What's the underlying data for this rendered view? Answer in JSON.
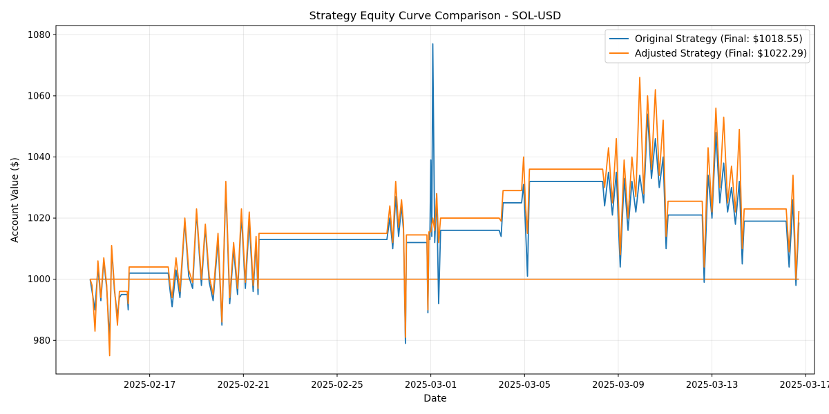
{
  "chart_data": {
    "type": "line",
    "title": "Strategy Equity Curve Comparison - SOL-USD",
    "xlabel": "Date",
    "ylabel": "Account Value ($)",
    "x_range": [
      "2025-02-13T00:00",
      "2025-03-17T09:00"
    ],
    "ylim": [
      969,
      1083
    ],
    "x_ticks": [
      "2025-02-17",
      "2025-02-21",
      "2025-02-25",
      "2025-03-01",
      "2025-03-05",
      "2025-03-09",
      "2025-03-13",
      "2025-03-17"
    ],
    "y_ticks": [
      980,
      1000,
      1020,
      1040,
      1060,
      1080
    ],
    "grid": true,
    "legend_position": "top-right",
    "series": [
      {
        "name": "Original Strategy (Final: $1018.55)",
        "color": "#1f77b4",
        "points": [
          [
            "2025-02-14T11:00",
            1000
          ],
          [
            "2025-02-14T13:00",
            996
          ],
          [
            "2025-02-14T16:00",
            990
          ],
          [
            "2025-02-14T19:00",
            1004
          ],
          [
            "2025-02-14T22:00",
            993
          ],
          [
            "2025-02-15T01:00",
            1006
          ],
          [
            "2025-02-15T04:00",
            997
          ],
          [
            "2025-02-15T07:00",
            980
          ],
          [
            "2025-02-15T09:00",
            1010
          ],
          [
            "2025-02-15T12:00",
            996
          ],
          [
            "2025-02-15T15:00",
            988
          ],
          [
            "2025-02-15T17:00",
            994
          ],
          [
            "2025-02-15T19:00",
            995
          ],
          [
            "2025-02-16T01:00",
            995
          ],
          [
            "2025-02-16T02:00",
            990
          ],
          [
            "2025-02-16T03:00",
            1002
          ],
          [
            "2025-02-17T19:00",
            1002
          ],
          [
            "2025-02-17T21:00",
            996
          ],
          [
            "2025-02-17T23:00",
            991
          ],
          [
            "2025-02-18T03:00",
            1003
          ],
          [
            "2025-02-18T07:00",
            994
          ],
          [
            "2025-02-18T12:00",
            1019
          ],
          [
            "2025-02-18T16:00",
            1001
          ],
          [
            "2025-02-18T20:00",
            997
          ],
          [
            "2025-02-19T00:00",
            1022
          ],
          [
            "2025-02-19T05:00",
            998
          ],
          [
            "2025-02-19T09:00",
            1017
          ],
          [
            "2025-02-19T13:00",
            999
          ],
          [
            "2025-02-19T17:00",
            993
          ],
          [
            "2025-02-19T22:00",
            1013
          ],
          [
            "2025-02-20T02:00",
            985
          ],
          [
            "2025-02-20T06:00",
            1030
          ],
          [
            "2025-02-20T10:00",
            992
          ],
          [
            "2025-02-20T14:00",
            1010
          ],
          [
            "2025-02-20T18:00",
            995
          ],
          [
            "2025-02-20T22:00",
            1021
          ],
          [
            "2025-02-21T02:00",
            997
          ],
          [
            "2025-02-21T06:00",
            1019
          ],
          [
            "2025-02-21T10:00",
            996
          ],
          [
            "2025-02-21T13:00",
            1012
          ],
          [
            "2025-02-21T15:00",
            995
          ],
          [
            "2025-02-21T16:00",
            1013
          ],
          [
            "2025-02-27T03:00",
            1013
          ],
          [
            "2025-02-27T06:00",
            1020
          ],
          [
            "2025-02-27T09:00",
            1010
          ],
          [
            "2025-02-27T12:00",
            1027
          ],
          [
            "2025-02-27T15:00",
            1014
          ],
          [
            "2025-02-27T18:00",
            1024
          ],
          [
            "2025-02-27T20:00",
            1016
          ],
          [
            "2025-02-27T22:00",
            979
          ],
          [
            "2025-02-27T23:00",
            1012
          ],
          [
            "2025-02-28T20:00",
            1012
          ],
          [
            "2025-02-28T21:00",
            989
          ],
          [
            "2025-02-28T22:00",
            1013
          ],
          [
            "2025-02-28T23:00",
            1013
          ],
          [
            "2025-03-01T00:00",
            1039
          ],
          [
            "2025-03-01T01:00",
            1014
          ],
          [
            "2025-03-01T02:00",
            1077
          ],
          [
            "2025-03-01T04:00",
            1012
          ],
          [
            "2025-03-01T06:00",
            1028
          ],
          [
            "2025-03-01T08:00",
            992
          ],
          [
            "2025-03-01T10:00",
            1016
          ],
          [
            "2025-03-03T22:00",
            1016
          ],
          [
            "2025-03-04T00:00",
            1014
          ],
          [
            "2025-03-04T02:00",
            1025
          ],
          [
            "2025-03-04T21:00",
            1025
          ],
          [
            "2025-03-04T23:00",
            1031
          ],
          [
            "2025-03-05T01:00",
            1017
          ],
          [
            "2025-03-05T03:00",
            1001
          ],
          [
            "2025-03-05T05:00",
            1032
          ],
          [
            "2025-03-08T08:00",
            1032
          ],
          [
            "2025-03-08T10:00",
            1024
          ],
          [
            "2025-03-08T14:00",
            1035
          ],
          [
            "2025-03-08T18:00",
            1021
          ],
          [
            "2025-03-08T22:00",
            1035
          ],
          [
            "2025-03-09T02:00",
            1004
          ],
          [
            "2025-03-09T06:00",
            1033
          ],
          [
            "2025-03-09T10:00",
            1016
          ],
          [
            "2025-03-09T14:00",
            1032
          ],
          [
            "2025-03-09T18:00",
            1022
          ],
          [
            "2025-03-09T22:00",
            1034
          ],
          [
            "2025-03-10T02:00",
            1025
          ],
          [
            "2025-03-10T06:00",
            1054
          ],
          [
            "2025-03-10T10:00",
            1033
          ],
          [
            "2025-03-10T14:00",
            1046
          ],
          [
            "2025-03-10T18:00",
            1030
          ],
          [
            "2025-03-10T22:00",
            1040
          ],
          [
            "2025-03-11T01:00",
            1010
          ],
          [
            "2025-03-11T03:00",
            1021
          ],
          [
            "2025-03-12T14:00",
            1021
          ],
          [
            "2025-03-12T16:00",
            999
          ],
          [
            "2025-03-12T20:00",
            1034
          ],
          [
            "2025-03-13T00:00",
            1020
          ],
          [
            "2025-03-13T04:00",
            1048
          ],
          [
            "2025-03-13T08:00",
            1025
          ],
          [
            "2025-03-13T12:00",
            1038
          ],
          [
            "2025-03-13T16:00",
            1022
          ],
          [
            "2025-03-13T20:00",
            1030
          ],
          [
            "2025-03-14T00:00",
            1018
          ],
          [
            "2025-03-14T04:00",
            1032
          ],
          [
            "2025-03-14T07:00",
            1005
          ],
          [
            "2025-03-14T09:00",
            1019
          ],
          [
            "2025-03-16T04:00",
            1019
          ],
          [
            "2025-03-16T07:00",
            1004
          ],
          [
            "2025-03-16T11:00",
            1026
          ],
          [
            "2025-03-16T14:00",
            998
          ],
          [
            "2025-03-16T17:00",
            1018.55
          ]
        ]
      },
      {
        "name": "Adjusted Strategy (Final: $1022.29)",
        "color": "#ff7f0e",
        "points": [
          [
            "2025-02-14T11:00",
            1000
          ],
          [
            "2025-02-14T13:00",
            998
          ],
          [
            "2025-02-14T16:00",
            983
          ],
          [
            "2025-02-14T19:00",
            1006
          ],
          [
            "2025-02-14T22:00",
            994
          ],
          [
            "2025-02-15T01:00",
            1007
          ],
          [
            "2025-02-15T04:00",
            998
          ],
          [
            "2025-02-15T07:00",
            975
          ],
          [
            "2025-02-15T09:00",
            1011
          ],
          [
            "2025-02-15T12:00",
            997
          ],
          [
            "2025-02-15T15:00",
            985
          ],
          [
            "2025-02-15T17:00",
            996
          ],
          [
            "2025-02-15T19:00",
            996
          ],
          [
            "2025-02-16T01:00",
            996
          ],
          [
            "2025-02-16T02:00",
            992
          ],
          [
            "2025-02-16T03:00",
            1004
          ],
          [
            "2025-02-17T19:00",
            1004
          ],
          [
            "2025-02-17T21:00",
            998
          ],
          [
            "2025-02-17T23:00",
            994
          ],
          [
            "2025-02-18T03:00",
            1007
          ],
          [
            "2025-02-18T07:00",
            996
          ],
          [
            "2025-02-18T12:00",
            1020
          ],
          [
            "2025-02-18T16:00",
            1003
          ],
          [
            "2025-02-18T20:00",
            999
          ],
          [
            "2025-02-19T00:00",
            1023
          ],
          [
            "2025-02-19T05:00",
            1000
          ],
          [
            "2025-02-19T09:00",
            1018
          ],
          [
            "2025-02-19T13:00",
            1001
          ],
          [
            "2025-02-19T17:00",
            995
          ],
          [
            "2025-02-19T22:00",
            1015
          ],
          [
            "2025-02-20T02:00",
            986
          ],
          [
            "2025-02-20T06:00",
            1032
          ],
          [
            "2025-02-20T10:00",
            994
          ],
          [
            "2025-02-20T14:00",
            1012
          ],
          [
            "2025-02-20T18:00",
            997
          ],
          [
            "2025-02-20T22:00",
            1023
          ],
          [
            "2025-02-21T02:00",
            999
          ],
          [
            "2025-02-21T06:00",
            1022
          ],
          [
            "2025-02-21T10:00",
            998
          ],
          [
            "2025-02-21T13:00",
            1014
          ],
          [
            "2025-02-21T15:00",
            997
          ],
          [
            "2025-02-21T16:00",
            1015
          ],
          [
            "2025-02-27T03:00",
            1015
          ],
          [
            "2025-02-27T06:00",
            1024
          ],
          [
            "2025-02-27T09:00",
            1012
          ],
          [
            "2025-02-27T12:00",
            1032
          ],
          [
            "2025-02-27T15:00",
            1017
          ],
          [
            "2025-02-27T18:00",
            1026
          ],
          [
            "2025-02-27T20:00",
            1018
          ],
          [
            "2025-02-27T22:00",
            981
          ],
          [
            "2025-02-27T23:00",
            1014.5
          ],
          [
            "2025-02-28T20:00",
            1014.5
          ],
          [
            "2025-02-28T21:00",
            990
          ],
          [
            "2025-02-28T22:00",
            1015.5
          ],
          [
            "2025-02-28T23:00",
            1015.5
          ],
          [
            "2025-03-01T00:00",
            1015.5
          ],
          [
            "2025-03-01T02:00",
            1020
          ],
          [
            "2025-03-01T04:00",
            1016
          ],
          [
            "2025-03-01T06:00",
            1028
          ],
          [
            "2025-03-01T08:00",
            1012
          ],
          [
            "2025-03-01T10:00",
            1020
          ],
          [
            "2025-03-03T22:00",
            1020
          ],
          [
            "2025-03-04T00:00",
            1019
          ],
          [
            "2025-03-04T02:00",
            1029
          ],
          [
            "2025-03-04T21:00",
            1029
          ],
          [
            "2025-03-04T23:00",
            1040
          ],
          [
            "2025-03-05T01:00",
            1024
          ],
          [
            "2025-03-05T03:00",
            1015
          ],
          [
            "2025-03-05T05:00",
            1036
          ],
          [
            "2025-03-08T08:00",
            1036
          ],
          [
            "2025-03-08T10:00",
            1030
          ],
          [
            "2025-03-08T14:00",
            1043
          ],
          [
            "2025-03-08T18:00",
            1025
          ],
          [
            "2025-03-08T22:00",
            1046
          ],
          [
            "2025-03-09T02:00",
            1008
          ],
          [
            "2025-03-09T06:00",
            1039
          ],
          [
            "2025-03-09T10:00",
            1020
          ],
          [
            "2025-03-09T14:00",
            1040
          ],
          [
            "2025-03-09T18:00",
            1027
          ],
          [
            "2025-03-09T22:00",
            1066
          ],
          [
            "2025-03-10T02:00",
            1028
          ],
          [
            "2025-03-10T06:00",
            1060
          ],
          [
            "2025-03-10T10:00",
            1036
          ],
          [
            "2025-03-10T14:00",
            1062
          ],
          [
            "2025-03-10T18:00",
            1034
          ],
          [
            "2025-03-10T22:00",
            1052
          ],
          [
            "2025-03-11T01:00",
            1014
          ],
          [
            "2025-03-11T03:00",
            1025.5
          ],
          [
            "2025-03-12T14:00",
            1025.5
          ],
          [
            "2025-03-12T16:00",
            1004
          ],
          [
            "2025-03-12T20:00",
            1043
          ],
          [
            "2025-03-13T00:00",
            1022
          ],
          [
            "2025-03-13T04:00",
            1056
          ],
          [
            "2025-03-13T08:00",
            1030
          ],
          [
            "2025-03-13T12:00",
            1053
          ],
          [
            "2025-03-13T16:00",
            1025
          ],
          [
            "2025-03-13T20:00",
            1037
          ],
          [
            "2025-03-14T00:00",
            1022
          ],
          [
            "2025-03-14T04:00",
            1049
          ],
          [
            "2025-03-14T07:00",
            1010
          ],
          [
            "2025-03-14T09:00",
            1023
          ],
          [
            "2025-03-16T04:00",
            1023
          ],
          [
            "2025-03-16T07:00",
            1009
          ],
          [
            "2025-03-16T11:00",
            1034
          ],
          [
            "2025-03-16T14:00",
            1000
          ],
          [
            "2025-03-16T17:00",
            1022.29
          ]
        ]
      }
    ],
    "reference_lines": [
      {
        "y": 1000,
        "color": "#1f77b4",
        "x_range": [
          "2025-02-14T11:00",
          "2025-03-16T17:00"
        ]
      },
      {
        "y": 1000,
        "color": "#ff7f0e",
        "x_range": [
          "2025-02-14T11:00",
          "2025-03-16T17:00"
        ]
      }
    ]
  }
}
